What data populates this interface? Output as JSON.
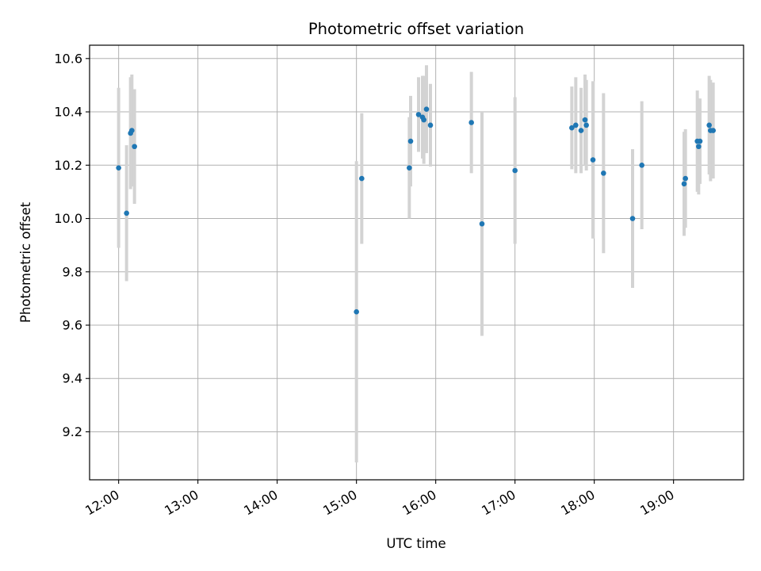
{
  "chart_data": {
    "type": "scatter",
    "title": "Photometric offset variation",
    "xlabel": "UTC time",
    "ylabel": "Photometric offset",
    "x_unit": "UTC time (HH:MM)",
    "xlim": [
      "11:38",
      "19:53"
    ],
    "ylim": [
      9.02,
      10.65
    ],
    "x_ticks": [
      "12:00",
      "13:00",
      "14:00",
      "15:00",
      "16:00",
      "17:00",
      "18:00",
      "19:00"
    ],
    "y_ticks": [
      9.2,
      9.4,
      9.6,
      9.8,
      10.0,
      10.2,
      10.4,
      10.6
    ],
    "y_tick_labels": [
      "9.2",
      "9.4",
      "9.6",
      "9.8",
      "10.0",
      "10.2",
      "10.4",
      "10.6"
    ],
    "grid": true,
    "legend": "none",
    "colors": {
      "points": "#1f77b4",
      "errorbars": "#d3d3d3",
      "grid": "#b0b0b0"
    },
    "series": [
      {
        "points": [
          {
            "x": "12:00",
            "y": 10.19,
            "err": 0.3
          },
          {
            "x": "12:06",
            "y": 10.02,
            "err": 0.255
          },
          {
            "x": "12:09",
            "y": 10.32,
            "err": 0.21
          },
          {
            "x": "12:10",
            "y": 10.33,
            "err": 0.21
          },
          {
            "x": "12:12",
            "y": 10.27,
            "err": 0.215
          },
          {
            "x": "15:00",
            "y": 9.65,
            "err": 0.565
          },
          {
            "x": "15:04",
            "y": 10.15,
            "err": 0.245
          },
          {
            "x": "15:40",
            "y": 10.19,
            "err": 0.19
          },
          {
            "x": "15:41",
            "y": 10.29,
            "err": 0.17
          },
          {
            "x": "15:47",
            "y": 10.39,
            "err": 0.14
          },
          {
            "x": "15:50",
            "y": 10.38,
            "err": 0.155
          },
          {
            "x": "15:51",
            "y": 10.37,
            "err": 0.165
          },
          {
            "x": "15:53",
            "y": 10.41,
            "err": 0.165
          },
          {
            "x": "15:56",
            "y": 10.35,
            "err": 0.155
          },
          {
            "x": "16:27",
            "y": 10.36,
            "err": 0.19
          },
          {
            "x": "16:35",
            "y": 9.98,
            "err": 0.42
          },
          {
            "x": "17:00",
            "y": 10.18,
            "err": 0.275
          },
          {
            "x": "17:43",
            "y": 10.34,
            "err": 0.155
          },
          {
            "x": "17:46",
            "y": 10.35,
            "err": 0.18
          },
          {
            "x": "17:50",
            "y": 10.33,
            "err": 0.16
          },
          {
            "x": "17:53",
            "y": 10.37,
            "err": 0.17
          },
          {
            "x": "17:54",
            "y": 10.35,
            "err": 0.17
          },
          {
            "x": "17:59",
            "y": 10.22,
            "err": 0.295
          },
          {
            "x": "18:07",
            "y": 10.17,
            "err": 0.3
          },
          {
            "x": "18:29",
            "y": 10.0,
            "err": 0.26
          },
          {
            "x": "18:36",
            "y": 10.2,
            "err": 0.24
          },
          {
            "x": "19:08",
            "y": 10.13,
            "err": 0.195
          },
          {
            "x": "19:09",
            "y": 10.15,
            "err": 0.185
          },
          {
            "x": "19:18",
            "y": 10.29,
            "err": 0.19
          },
          {
            "x": "19:19",
            "y": 10.27,
            "err": 0.18
          },
          {
            "x": "19:20",
            "y": 10.29,
            "err": 0.16
          },
          {
            "x": "19:27",
            "y": 10.35,
            "err": 0.185
          },
          {
            "x": "19:28",
            "y": 10.33,
            "err": 0.19
          },
          {
            "x": "19:30",
            "y": 10.33,
            "err": 0.18
          }
        ]
      }
    ]
  }
}
